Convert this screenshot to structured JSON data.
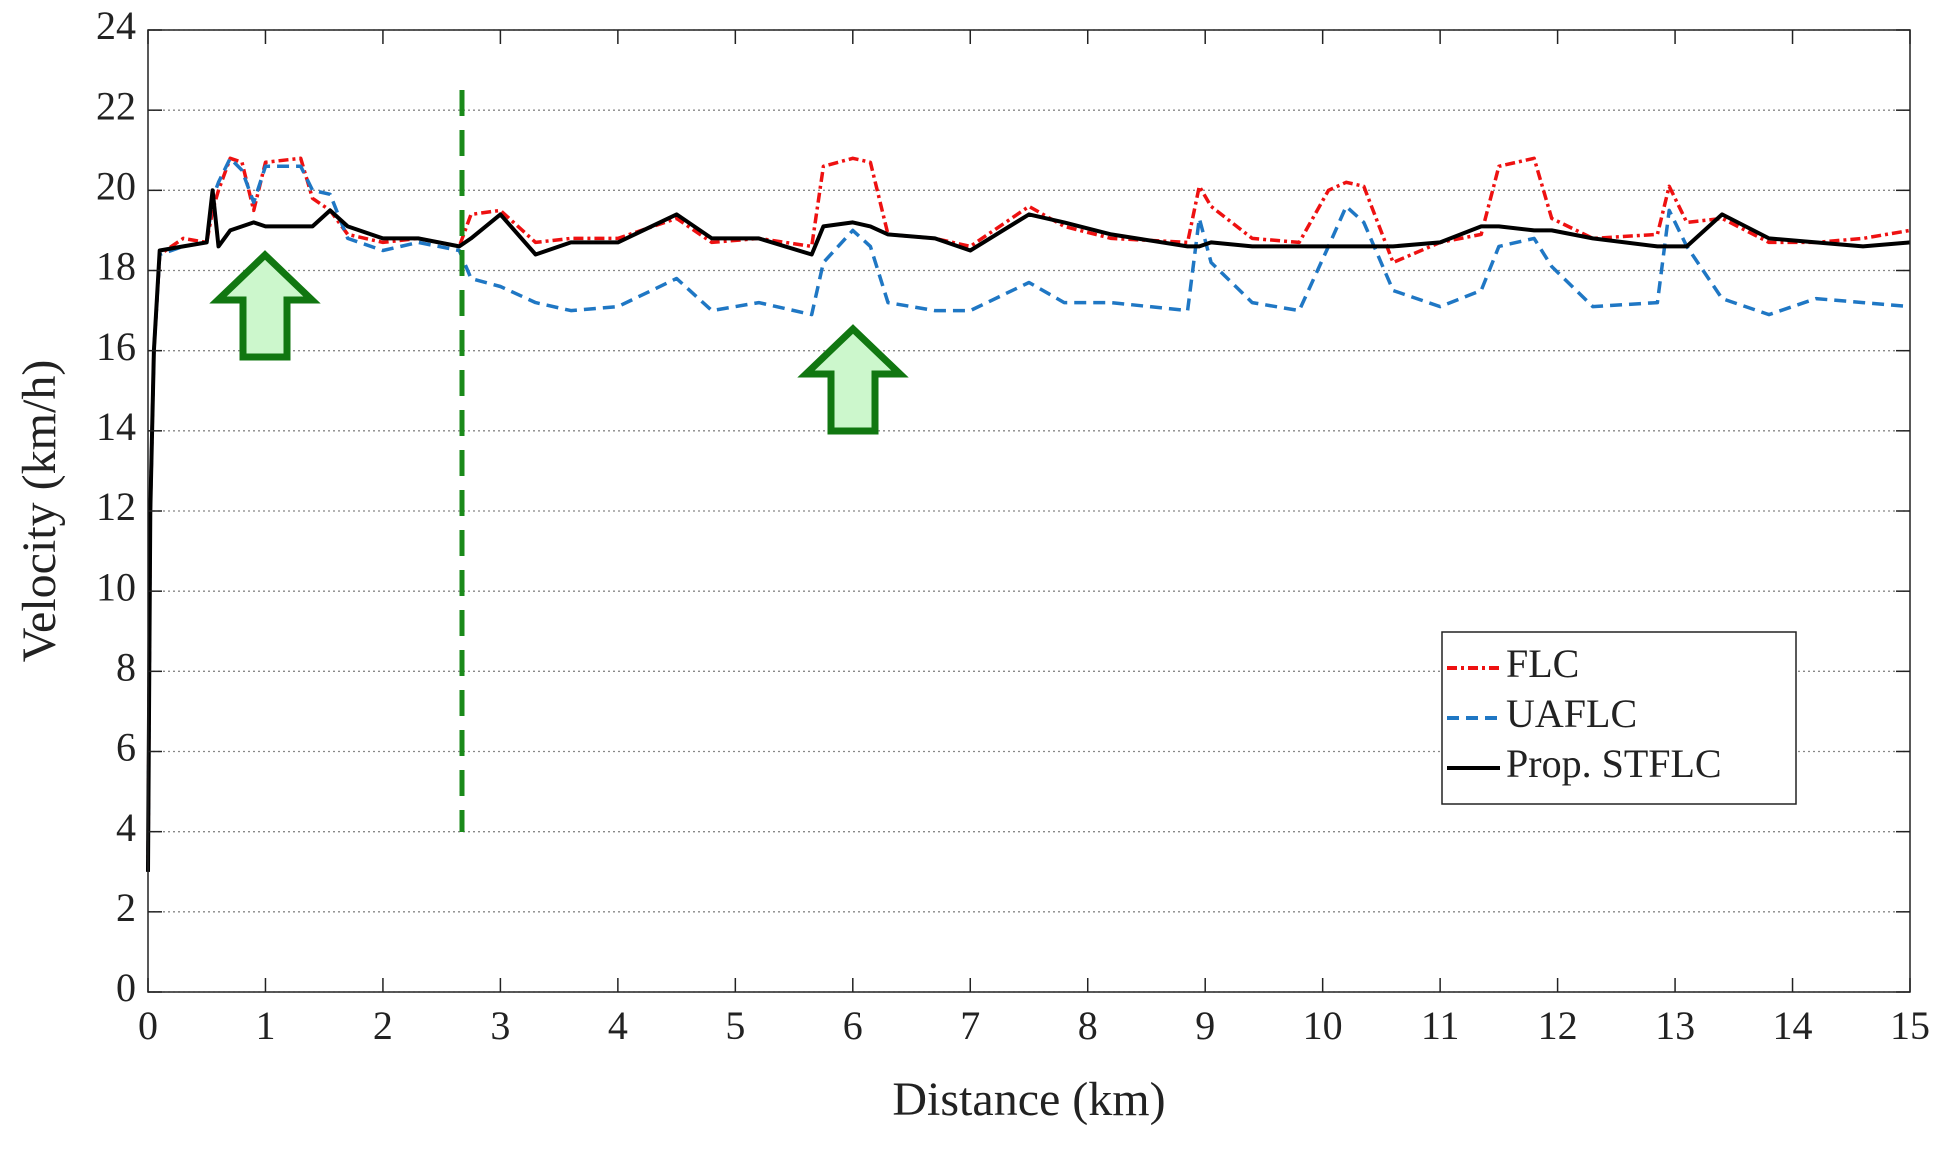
{
  "chart_data": {
    "type": "line",
    "x_label": "Distance (km)",
    "y_label": "Velocity (km/h)",
    "x": [
      0,
      0.02,
      0.05,
      0.1,
      0.3,
      0.5,
      0.55,
      0.6,
      0.7,
      0.8,
      0.9,
      1.0,
      1.3,
      1.4,
      1.55,
      1.7,
      2.0,
      2.3,
      2.65,
      2.75,
      3.0,
      3.3,
      3.6,
      4.0,
      4.5,
      4.8,
      5.2,
      5.65,
      5.75,
      6.0,
      6.15,
      6.3,
      6.7,
      7.0,
      7.5,
      7.8,
      8.2,
      8.85,
      8.95,
      9.05,
      9.4,
      9.8,
      10.05,
      10.2,
      10.35,
      10.6,
      11.0,
      11.35,
      11.5,
      11.8,
      11.95,
      12.3,
      12.85,
      12.95,
      13.1,
      13.4,
      13.8,
      14.2,
      14.6,
      15.0
    ],
    "series": [
      {
        "name": "FLC",
        "color": "#ee1111",
        "linestyle": "dashdot",
        "values": [
          3,
          12,
          16,
          18.4,
          18.8,
          18.7,
          19.5,
          20,
          20.8,
          20.7,
          19.5,
          20.7,
          20.8,
          19.8,
          19.5,
          18.9,
          18.7,
          18.8,
          18.6,
          19.4,
          19.5,
          18.7,
          18.8,
          18.8,
          19.3,
          18.7,
          18.8,
          18.6,
          20.6,
          20.8,
          20.7,
          18.9,
          18.8,
          18.6,
          19.6,
          19.1,
          18.8,
          18.7,
          20.1,
          19.6,
          18.8,
          18.7,
          20.0,
          20.2,
          20.1,
          18.2,
          18.7,
          18.9,
          20.6,
          20.8,
          19.3,
          18.8,
          18.9,
          20.1,
          19.2,
          19.3,
          18.7,
          18.7,
          18.8,
          19.0
        ]
      },
      {
        "name": "UAFLC",
        "color": "#1f77c4",
        "linestyle": "dashed",
        "values": [
          3,
          12,
          16,
          18.4,
          18.6,
          18.7,
          19.8,
          20.2,
          20.8,
          20.5,
          19.7,
          20.6,
          20.6,
          20.0,
          19.9,
          18.8,
          18.5,
          18.7,
          18.5,
          17.8,
          17.6,
          17.2,
          17.0,
          17.1,
          17.8,
          17.0,
          17.2,
          16.9,
          18.2,
          19.0,
          18.6,
          17.2,
          17.0,
          17.0,
          17.7,
          17.2,
          17.2,
          17.0,
          19.3,
          18.2,
          17.2,
          17.0,
          18.6,
          19.6,
          19.2,
          17.5,
          17.1,
          17.5,
          18.6,
          18.8,
          18.1,
          17.1,
          17.2,
          19.5,
          18.6,
          17.3,
          16.9,
          17.3,
          17.2,
          17.1
        ]
      },
      {
        "name": "Prop. STFLC",
        "color": "#000000",
        "linestyle": "solid",
        "values": [
          3,
          12,
          16,
          18.5,
          18.6,
          18.7,
          20.0,
          18.6,
          19.0,
          19.1,
          19.2,
          19.1,
          19.1,
          19.1,
          19.5,
          19.1,
          18.8,
          18.8,
          18.6,
          18.8,
          19.4,
          18.4,
          18.7,
          18.7,
          19.4,
          18.8,
          18.8,
          18.4,
          19.1,
          19.2,
          19.1,
          18.9,
          18.8,
          18.5,
          19.4,
          19.2,
          18.9,
          18.6,
          18.6,
          18.7,
          18.6,
          18.6,
          18.6,
          18.6,
          18.6,
          18.6,
          18.7,
          19.1,
          19.1,
          19.0,
          19.0,
          18.8,
          18.6,
          18.6,
          18.6,
          19.4,
          18.8,
          18.7,
          18.6,
          18.7
        ]
      }
    ],
    "xlim": [
      0,
      15
    ],
    "xticks": [
      0,
      1,
      2,
      3,
      4,
      5,
      6,
      7,
      8,
      9,
      10,
      11,
      12,
      13,
      14,
      15
    ],
    "ylim": [
      0,
      24
    ],
    "yticks": [
      0,
      2,
      4,
      6,
      8,
      10,
      12,
      14,
      16,
      18,
      20,
      22,
      24
    ],
    "grid": "y",
    "legend": "center right"
  }
}
